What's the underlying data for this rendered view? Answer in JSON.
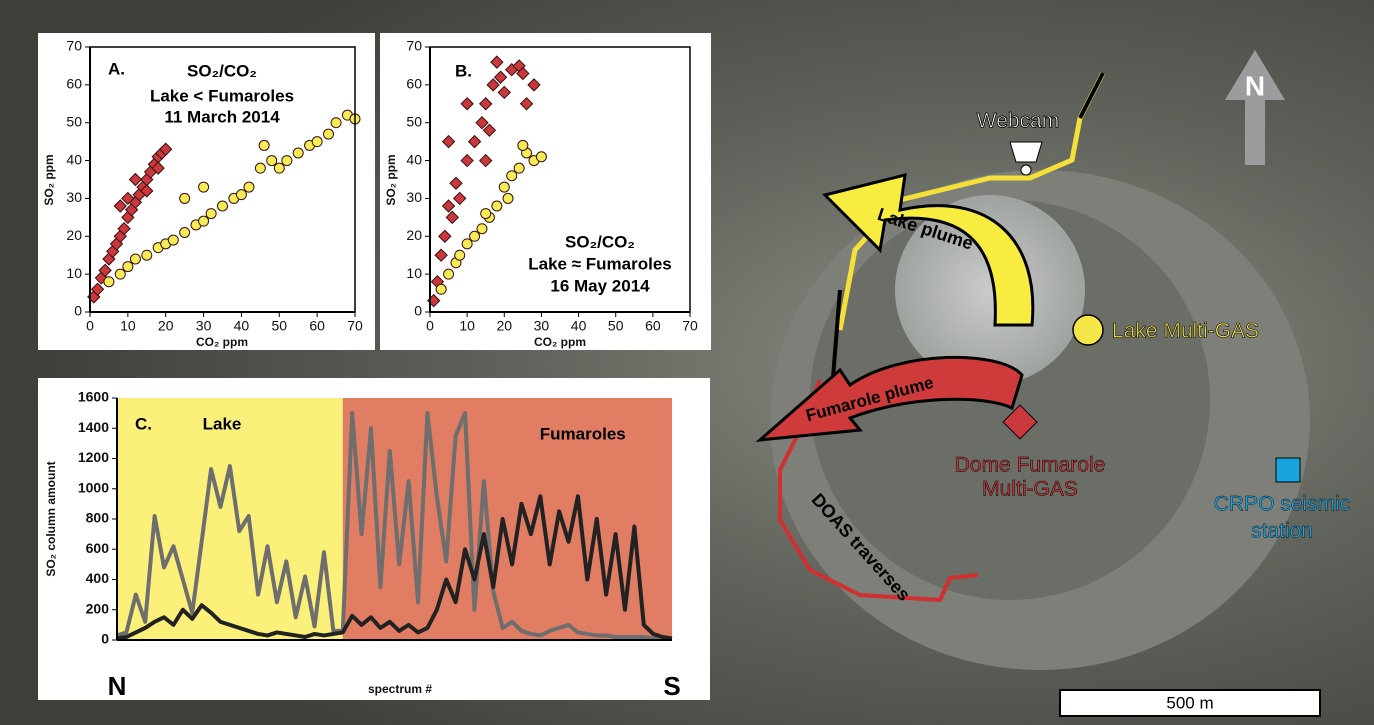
{
  "chart_data": [
    {
      "type": "scatter",
      "panel_label": "A.",
      "title": [
        "SO₂/CO₂",
        "Lake < Fumaroles",
        "11 March 2014"
      ],
      "x_label": "CO₂ ppm",
      "y_label": "SO₂ ppm",
      "xlim": [
        0,
        70
      ],
      "ylim": [
        0,
        70
      ],
      "xticks": [
        0,
        10,
        20,
        30,
        40,
        50,
        60,
        70
      ],
      "yticks": [
        0,
        10,
        20,
        30,
        40,
        50,
        60,
        70
      ],
      "series": [
        {
          "color": "#c8383c",
          "marker": "diamond",
          "x": [
            1,
            2,
            3,
            4,
            5,
            6,
            7,
            8,
            9,
            10,
            11,
            12,
            13,
            14,
            15,
            16,
            17,
            18,
            19,
            20,
            8,
            10,
            12,
            15,
            18
          ],
          "y": [
            4,
            6,
            9,
            11,
            14,
            16,
            18,
            20,
            22,
            25,
            27,
            29,
            31,
            33,
            35,
            37,
            39,
            41,
            42,
            43,
            28,
            30,
            35,
            32,
            38
          ]
        },
        {
          "color": "#f5ec56",
          "marker": "circle",
          "x": [
            5,
            8,
            10,
            12,
            15,
            18,
            20,
            22,
            25,
            28,
            30,
            32,
            35,
            38,
            40,
            42,
            45,
            48,
            50,
            52,
            55,
            58,
            60,
            63,
            65,
            68,
            70,
            46,
            30,
            25
          ],
          "y": [
            8,
            10,
            12,
            14,
            15,
            17,
            18,
            19,
            21,
            23,
            24,
            26,
            28,
            30,
            31,
            33,
            38,
            40,
            38,
            40,
            42,
            44,
            45,
            47,
            50,
            52,
            51,
            44,
            33,
            30
          ]
        }
      ]
    },
    {
      "type": "scatter",
      "panel_label": "B.",
      "title": [
        "SO₂/CO₂",
        "Lake ≈ Fumaroles",
        "16 May 2014"
      ],
      "x_label": "CO₂ ppm",
      "y_label": "SO₂ ppm",
      "xlim": [
        0,
        70
      ],
      "ylim": [
        0,
        70
      ],
      "xticks": [
        0,
        10,
        20,
        30,
        40,
        50,
        60,
        70
      ],
      "yticks": [
        0,
        10,
        20,
        30,
        40,
        50,
        60,
        70
      ],
      "series": [
        {
          "color": "#c8383c",
          "marker": "diamond",
          "x": [
            1,
            2,
            3,
            4,
            5,
            6,
            7,
            8,
            10,
            12,
            14,
            15,
            16,
            17,
            18,
            19,
            20,
            22,
            24,
            25,
            26,
            28,
            5,
            10,
            15
          ],
          "y": [
            3,
            8,
            15,
            20,
            28,
            25,
            34,
            30,
            40,
            45,
            50,
            55,
            48,
            60,
            66,
            62,
            58,
            64,
            65,
            63,
            55,
            60,
            45,
            55,
            40
          ]
        },
        {
          "color": "#f5ec56",
          "marker": "circle",
          "x": [
            3,
            5,
            7,
            8,
            10,
            12,
            14,
            16,
            18,
            20,
            22,
            24,
            26,
            28,
            30,
            25,
            21,
            15
          ],
          "y": [
            6,
            10,
            13,
            15,
            18,
            20,
            22,
            25,
            28,
            33,
            36,
            38,
            42,
            40,
            41,
            44,
            30,
            26
          ]
        }
      ]
    },
    {
      "type": "line",
      "panel_label": "C.",
      "x_label": "spectrum #",
      "y_label": "SO₂ column amount",
      "x_start_label": "N",
      "x_end_label": "S",
      "ylim": [
        0,
        1600
      ],
      "yticks": [
        0,
        200,
        400,
        600,
        800,
        1000,
        1200,
        1400,
        1600
      ],
      "regions": [
        {
          "label": "Lake",
          "color": "#fbf07a",
          "from": 0,
          "to": 24
        },
        {
          "label": "Fumaroles",
          "color": "#e07d62",
          "from": 24,
          "to": 59
        }
      ],
      "series": [
        {
          "color": "#6e6e6e",
          "values": [
            30,
            50,
            300,
            120,
            820,
            480,
            620,
            400,
            180,
            650,
            1130,
            880,
            1150,
            720,
            820,
            300,
            620,
            250,
            520,
            150,
            420,
            90,
            580,
            60,
            60,
            1500,
            700,
            1400,
            350,
            1250,
            500,
            1050,
            250,
            1500,
            950,
            520,
            1350,
            1500,
            200,
            1050,
            320,
            80,
            120,
            60,
            40,
            30,
            60,
            80,
            100,
            50,
            40,
            30,
            30,
            20,
            20,
            20,
            20,
            10,
            10,
            10
          ]
        },
        {
          "color": "#222222",
          "values": [
            10,
            20,
            50,
            80,
            120,
            150,
            100,
            200,
            140,
            230,
            180,
            120,
            100,
            80,
            60,
            40,
            30,
            50,
            40,
            30,
            20,
            40,
            30,
            40,
            50,
            160,
            100,
            150,
            80,
            120,
            60,
            100,
            50,
            80,
            200,
            400,
            250,
            600,
            400,
            700,
            350,
            800,
            500,
            900,
            700,
            950,
            500,
            850,
            650,
            950,
            400,
            800,
            300,
            700,
            200,
            750,
            100,
            40,
            20,
            10
          ]
        }
      ]
    }
  ],
  "map": {
    "north": "N",
    "webcam": "Webcam",
    "lake_plume": "Lake plume",
    "lake_station": "Lake Multi-GAS",
    "fumarole_plume": "Fumarole plume",
    "dome_station": [
      "Dome Fumarole",
      "Multi-GAS"
    ],
    "seismic_station": [
      "CRPO seismic",
      "station"
    ],
    "doas": "DOAS traverses",
    "scale": "500 m"
  }
}
